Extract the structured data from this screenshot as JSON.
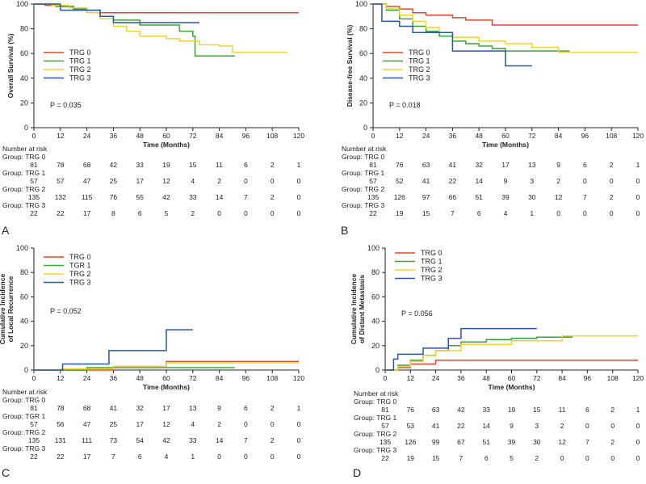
{
  "panels": [
    {
      "letter": "A",
      "chart_data": {
        "type": "line",
        "step": true,
        "title": "",
        "ylabel": [
          "Overall Survival (%)"
        ],
        "xlabel": "Time (Months)",
        "xlim": [
          0,
          120
        ],
        "ylim": [
          0,
          100
        ],
        "xticks": [
          0,
          12,
          24,
          36,
          48,
          60,
          72,
          84,
          96,
          108,
          120
        ],
        "yticks": [
          0,
          20,
          40,
          60,
          80,
          100
        ],
        "legend_position": "middle-left",
        "pvalue": "P = 0.035",
        "series": [
          {
            "name": "TRG 0",
            "color": "#e8432d",
            "x": [
              0,
              5,
              12,
              18,
              24,
              30,
              120
            ],
            "y": [
              100,
              99,
              98,
              96,
              95,
              93,
              93
            ]
          },
          {
            "name": "TRG 1",
            "color": "#3aa534",
            "x": [
              0,
              10,
              18,
              24,
              30,
              36,
              48,
              66,
              72,
              73,
              91
            ],
            "y": [
              100,
              98,
              96,
              93,
              90,
              87,
              83,
              78,
              74,
              58,
              58
            ]
          },
          {
            "name": "TRG 2",
            "color": "#f2d22e",
            "x": [
              0,
              8,
              16,
              24,
              30,
              36,
              42,
              48,
              60,
              66,
              75,
              84,
              90,
              115
            ],
            "y": [
              100,
              99,
              97,
              93,
              88,
              82,
              78,
              74,
              72,
              70,
              67,
              66,
              61,
              61
            ]
          },
          {
            "name": "TRG 3",
            "color": "#2b54a8",
            "x": [
              0,
              12,
              30,
              36,
              75
            ],
            "y": [
              100,
              95,
              90,
              85,
              85
            ]
          }
        ]
      },
      "risk": {
        "header": "Number at risk",
        "groups": [
          {
            "label": "Group: TRG 0",
            "values": [
              81,
              78,
              68,
              42,
              33,
              19,
              15,
              11,
              6,
              2,
              1
            ]
          },
          {
            "label": "Group: TRG 1",
            "values": [
              57,
              57,
              47,
              25,
              17,
              12,
              4,
              2,
              0,
              0,
              0
            ]
          },
          {
            "label": "Group: TRG 2",
            "values": [
              135,
              132,
              115,
              76,
              55,
              42,
              33,
              14,
              7,
              2,
              0
            ]
          },
          {
            "label": "Group: TRG 3",
            "values": [
              22,
              22,
              17,
              8,
              6,
              5,
              2,
              0,
              0,
              0,
              0
            ]
          }
        ]
      }
    },
    {
      "letter": "B",
      "chart_data": {
        "type": "line",
        "step": true,
        "title": "",
        "ylabel": [
          "Disease-free Survival (%)"
        ],
        "xlabel": "Time (Months)",
        "xlim": [
          0,
          120
        ],
        "ylim": [
          0,
          100
        ],
        "xticks": [
          0,
          12,
          24,
          36,
          48,
          60,
          72,
          84,
          96,
          108,
          120
        ],
        "yticks": [
          0,
          20,
          40,
          60,
          80,
          100
        ],
        "legend_position": "middle-left",
        "pvalue": "P = 0.018",
        "series": [
          {
            "name": "TRG 0",
            "color": "#e8432d",
            "x": [
              0,
              6,
              12,
              18,
              24,
              36,
              42,
              54,
              120
            ],
            "y": [
              100,
              98,
              96,
              93,
              91,
              89,
              87,
              83,
              83
            ]
          },
          {
            "name": "TRG 1",
            "color": "#3aa534",
            "x": [
              0,
              6,
              12,
              18,
              24,
              30,
              36,
              42,
              48,
              54,
              60,
              89
            ],
            "y": [
              100,
              95,
              88,
              82,
              78,
              74,
              70,
              68,
              66,
              64,
              62,
              62
            ]
          },
          {
            "name": "TRG 2",
            "color": "#f2d22e",
            "x": [
              0,
              6,
              12,
              18,
              24,
              30,
              36,
              48,
              60,
              72,
              84,
              120
            ],
            "y": [
              100,
              96,
              91,
              86,
              81,
              77,
              73,
              70,
              68,
              65,
              61,
              61
            ]
          },
          {
            "name": "TRG 3",
            "color": "#2b54a8",
            "x": [
              0,
              4,
              12,
              18,
              36,
              60,
              72
            ],
            "y": [
              100,
              86,
              82,
              77,
              62,
              50,
              50
            ]
          }
        ]
      },
      "risk": {
        "header": "Number at risk",
        "groups": [
          {
            "label": "Group: TRG 0",
            "values": [
              81,
              76,
              63,
              41,
              32,
              17,
              13,
              9,
              6,
              2,
              1
            ]
          },
          {
            "label": "Group: TRG 1",
            "values": [
              57,
              52,
              41,
              22,
              14,
              9,
              3,
              2,
              0,
              0,
              0
            ]
          },
          {
            "label": "Group: TRG 2",
            "values": [
              135,
              126,
              97,
              66,
              51,
              39,
              30,
              12,
              7,
              2,
              0
            ]
          },
          {
            "label": "Group: TRG 3",
            "values": [
              22,
              19,
              15,
              7,
              6,
              4,
              1,
              0,
              0,
              0,
              0
            ]
          }
        ]
      }
    },
    {
      "letter": "C",
      "chart_data": {
        "type": "line",
        "step": true,
        "title": "",
        "ylabel": [
          "Cumulative Incidence",
          "of Local Recurrence"
        ],
        "xlabel": "Time (Months)",
        "xlim": [
          0,
          120
        ],
        "ylim": [
          0,
          100
        ],
        "xticks": [
          0,
          12,
          24,
          36,
          48,
          60,
          72,
          84,
          96,
          108,
          120
        ],
        "yticks": [
          0,
          20,
          40,
          60,
          80,
          100
        ],
        "legend_position": "top-left",
        "pvalue": "P = 0.052",
        "series": [
          {
            "name": "TRG 0",
            "color": "#e8432d",
            "x": [
              0,
              36,
              60,
              120
            ],
            "y": [
              0,
              3,
              7,
              7
            ]
          },
          {
            "name": "TGR 1",
            "color": "#3aa534",
            "x": [
              0,
              24,
              91
            ],
            "y": [
              0,
              2,
              2
            ]
          },
          {
            "name": "TRG 2",
            "color": "#f2d22e",
            "x": [
              0,
              12,
              36,
              60,
              120
            ],
            "y": [
              0,
              1,
              3,
              6,
              6
            ]
          },
          {
            "name": "TRG 3",
            "color": "#2b54a8",
            "x": [
              0,
              13,
              24,
              34,
              60,
              72
            ],
            "y": [
              0,
              5,
              5,
              16,
              33,
              33
            ]
          }
        ]
      },
      "risk": {
        "header": "Number at risk",
        "groups": [
          {
            "label": "Group: TRG 0",
            "values": [
              81,
              78,
              68,
              41,
              32,
              17,
              13,
              9,
              6,
              2,
              1
            ]
          },
          {
            "label": "Group: TGR 1",
            "values": [
              57,
              56,
              47,
              25,
              17,
              12,
              4,
              2,
              0,
              0,
              0
            ]
          },
          {
            "label": "Group: TRG 2",
            "values": [
              135,
              131,
              111,
              73,
              54,
              42,
              33,
              14,
              7,
              2,
              0
            ]
          },
          {
            "label": "Group: TRG 3",
            "values": [
              22,
              22,
              17,
              7,
              6,
              4,
              1,
              0,
              0,
              0,
              0
            ]
          }
        ]
      }
    },
    {
      "letter": "D",
      "chart_data": {
        "type": "line",
        "step": true,
        "title": "",
        "ylabel": [
          "Cumulative Incidence",
          "of Distant Metastasis"
        ],
        "xlabel": "Time (Months)",
        "xlim": [
          0,
          120
        ],
        "ylim": [
          0,
          100
        ],
        "xticks": [
          0,
          12,
          24,
          36,
          48,
          60,
          72,
          84,
          96,
          108,
          120
        ],
        "yticks": [
          0,
          20,
          40,
          60,
          80,
          100
        ],
        "legend_position": "top-left",
        "pvalue": "P = 0.056",
        "series": [
          {
            "name": "TRG 0",
            "color": "#e8432d",
            "x": [
              0,
              6,
              12,
              24,
              120
            ],
            "y": [
              0,
              2,
              5,
              8,
              8
            ]
          },
          {
            "name": "TRG 1",
            "color": "#3aa534",
            "x": [
              0,
              6,
              12,
              18,
              24,
              30,
              36,
              48,
              60,
              72,
              89
            ],
            "y": [
              0,
              4,
              8,
              12,
              16,
              20,
              23,
              25,
              26,
              27,
              27
            ]
          },
          {
            "name": "TRG 2",
            "color": "#f2d22e",
            "x": [
              0,
              6,
              12,
              18,
              24,
              36,
              60,
              84,
              120
            ],
            "y": [
              0,
              3,
              7,
              12,
              16,
              21,
              24,
              28,
              28
            ]
          },
          {
            "name": "TRG 3",
            "color": "#2b54a8",
            "x": [
              0,
              4,
              6,
              18,
              30,
              36,
              72
            ],
            "y": [
              0,
              9,
              13,
              18,
              26,
              34,
              34
            ]
          }
        ]
      },
      "risk": {
        "header": "Number at risk",
        "groups": [
          {
            "label": "Group: TRG 0",
            "values": [
              81,
              76,
              63,
              42,
              33,
              19,
              15,
              11,
              6,
              2,
              1
            ]
          },
          {
            "label": "Group: TRG 1",
            "values": [
              57,
              53,
              41,
              22,
              14,
              9,
              3,
              2,
              0,
              0,
              0
            ]
          },
          {
            "label": "Group: TRG 2",
            "values": [
              135,
              126,
              99,
              67,
              51,
              39,
              30,
              12,
              7,
              2,
              0
            ]
          },
          {
            "label": "Group: TRG 3",
            "values": [
              22,
              19,
              15,
              7,
              6,
              5,
              2,
              0,
              0,
              0,
              0
            ]
          }
        ]
      }
    }
  ]
}
